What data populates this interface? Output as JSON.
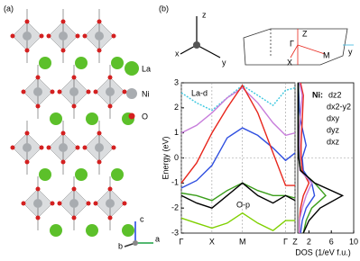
{
  "panel_a": {
    "label": "(a)",
    "legend": [
      "La",
      "Ni",
      "O"
    ],
    "axes": [
      "b",
      "c",
      "a"
    ]
  },
  "panel_b": {
    "label": "(b)",
    "axes": [
      "z",
      "x",
      "y"
    ],
    "bz_labels": [
      "Z",
      "Γ",
      "X",
      "M",
      "y"
    ]
  },
  "chart_data": [
    {
      "type": "line",
      "ylabel": "Energy (eV)",
      "ylim": [
        -3,
        3
      ],
      "yticks": [
        -3,
        -2,
        -1,
        0,
        1,
        2,
        3
      ],
      "xlim": [
        0,
        3.72
      ],
      "xticks": [
        {
          "value": 0,
          "label": "Γ"
        },
        {
          "value": 1,
          "label": "X"
        },
        {
          "value": 2,
          "label": "M"
        },
        {
          "value": 3.41,
          "label": "Γ"
        },
        {
          "value": 3.72,
          "label": "Z"
        }
      ],
      "x": [
        0,
        0.5,
        1,
        1.5,
        2,
        2.5,
        3,
        3.41,
        3.72
      ],
      "series": [
        {
          "name": "La-d",
          "color": "#3cc8e0",
          "dashed": true,
          "values": [
            2.6,
            2.2,
            1.9,
            2.4,
            2.9,
            2.5,
            2.1,
            2.7,
            2.8
          ]
        },
        {
          "name": "O-p",
          "color": "#7fd000",
          "values": [
            -2.4,
            -2.6,
            -2.8,
            -2.6,
            -2.2,
            -2.6,
            -2.9,
            -2.5,
            -2.5
          ]
        },
        {
          "name": "dxy",
          "color": "#c77ddb",
          "values": [
            1.0,
            1.3,
            1.8,
            2.4,
            2.8,
            2.2,
            1.4,
            0.9,
            1.0
          ]
        },
        {
          "name": "dyz",
          "color": "#3a9e1a",
          "values": [
            -1.4,
            -1.5,
            -1.7,
            -1.3,
            -1.0,
            -1.3,
            -1.5,
            -1.5,
            -1.6
          ]
        },
        {
          "name": "dxz",
          "color": "#000000",
          "values": [
            -1.5,
            -1.8,
            -2.0,
            -1.5,
            -1.0,
            -1.5,
            -1.8,
            -1.5,
            -1.7
          ]
        },
        {
          "name": "dz2",
          "color": "#2f4fe0",
          "values": [
            -1.2,
            -0.9,
            -0.3,
            0.8,
            1.2,
            0.9,
            0.4,
            -0.1,
            0.2
          ]
        },
        {
          "name": "dx2-y2",
          "color": "#e8261c",
          "values": [
            -1.0,
            -0.2,
            1.0,
            2.0,
            2.9,
            1.8,
            0.2,
            -1.1,
            -1.1
          ]
        }
      ]
    },
    {
      "type": "line",
      "orientation": "horizontal",
      "legend_title": "Ni:",
      "xlabel": "DOS (1/eV f.u.)",
      "xlim": [
        0,
        10
      ],
      "xticks": [
        2,
        6,
        10
      ],
      "ylim": [
        -3,
        3
      ],
      "y": [
        -3,
        -2.5,
        -2,
        -1.5,
        -1,
        -0.5,
        0,
        0.5,
        1,
        1.5,
        2,
        2.5,
        3
      ],
      "series": [
        {
          "name": "dz2",
          "color": "#2f4fe0",
          "values": [
            0.5,
            0.8,
            1.5,
            3,
            2.5,
            1,
            0.8,
            1.5,
            1,
            0.5,
            0.3,
            0.2,
            0.1
          ]
        },
        {
          "name": "dx2-y2",
          "color": "#e8261c",
          "values": [
            0.3,
            0.3,
            0.5,
            1,
            2,
            0.8,
            0.6,
            0.6,
            0.7,
            0.8,
            0.9,
            1.0,
            0.5
          ]
        },
        {
          "name": "dxy",
          "color": "#c77ddb",
          "values": [
            0.3,
            0.3,
            0.8,
            1.5,
            2.5,
            0.4,
            0.3,
            0.3,
            0.3,
            0.4,
            0.6,
            0.8,
            0.3
          ]
        },
        {
          "name": "dyz",
          "color": "#3a9e1a",
          "values": [
            1,
            1.5,
            2.5,
            5,
            3,
            0.5,
            0.2,
            0.1,
            0.1,
            0.1,
            0.1,
            0.1,
            0.1
          ]
        },
        {
          "name": "dxz",
          "color": "#000000",
          "values": [
            1,
            2,
            4,
            8,
            3,
            0.5,
            0.2,
            0.1,
            0.1,
            0.1,
            0.1,
            0.1,
            0.1
          ]
        }
      ]
    }
  ]
}
